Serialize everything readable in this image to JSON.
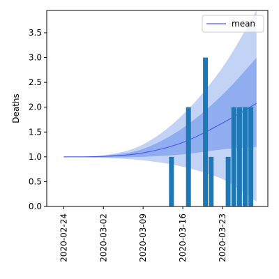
{
  "chart_data": {
    "type": "bar",
    "title": "",
    "xlabel": "",
    "ylabel": "Deaths",
    "x_range": [
      "2020-02-21",
      "2020-03-31"
    ],
    "ylim": [
      0,
      3.95
    ],
    "grid": false,
    "legend_position": "top-right",
    "legend": [
      {
        "label": "mean",
        "color": "#4a5cf0"
      }
    ],
    "x_ticks": [
      "2020-02-24",
      "2020-03-02",
      "2020-03-09",
      "2020-03-16",
      "2020-03-23"
    ],
    "y_ticks": [
      "0.0",
      "0.5",
      "1.0",
      "1.5",
      "2.0",
      "2.5",
      "3.0",
      "3.5"
    ],
    "bars": {
      "color": "#1f77b4",
      "points": [
        {
          "date": "2020-03-14",
          "value": 1
        },
        {
          "date": "2020-03-17",
          "value": 2
        },
        {
          "date": "2020-03-20",
          "value": 3
        },
        {
          "date": "2020-03-21",
          "value": 1
        },
        {
          "date": "2020-03-24",
          "value": 1
        },
        {
          "date": "2020-03-25",
          "value": 2
        },
        {
          "date": "2020-03-26",
          "value": 2
        },
        {
          "date": "2020-03-27",
          "value": 2
        },
        {
          "date": "2020-03-28",
          "value": 2
        }
      ]
    },
    "mean_line": {
      "name": "mean",
      "color": "#4a5cf0",
      "points": [
        {
          "date": "2020-02-24",
          "value": 1.0
        },
        {
          "date": "2020-03-02",
          "value": 1.01
        },
        {
          "date": "2020-03-09",
          "value": 1.08
        },
        {
          "date": "2020-03-16",
          "value": 1.29
        },
        {
          "date": "2020-03-23",
          "value": 1.68
        },
        {
          "date": "2020-03-29",
          "value": 2.08
        }
      ]
    },
    "outer_band": {
      "color": "#a9c1f2",
      "points": [
        {
          "date": "2020-02-24",
          "lower": 1.0,
          "upper": 1.0
        },
        {
          "date": "2020-03-02",
          "lower": 0.98,
          "upper": 1.03
        },
        {
          "date": "2020-03-09",
          "lower": 0.93,
          "upper": 1.25
        },
        {
          "date": "2020-03-16",
          "lower": 0.8,
          "upper": 1.85
        },
        {
          "date": "2020-03-23",
          "lower": 0.55,
          "upper": 2.8
        },
        {
          "date": "2020-03-29",
          "lower": 0.1,
          "upper": 3.95
        }
      ]
    },
    "inner_band": {
      "color": "#7fa0ee",
      "points": [
        {
          "date": "2020-02-24",
          "lower": 1.0,
          "upper": 1.0
        },
        {
          "date": "2020-03-02",
          "lower": 0.99,
          "upper": 1.02
        },
        {
          "date": "2020-03-09",
          "lower": 1.0,
          "upper": 1.16
        },
        {
          "date": "2020-03-16",
          "lower": 1.05,
          "upper": 1.58
        },
        {
          "date": "2020-03-23",
          "lower": 1.15,
          "upper": 2.25
        },
        {
          "date": "2020-03-29",
          "lower": 1.2,
          "upper": 3.0
        }
      ]
    }
  }
}
